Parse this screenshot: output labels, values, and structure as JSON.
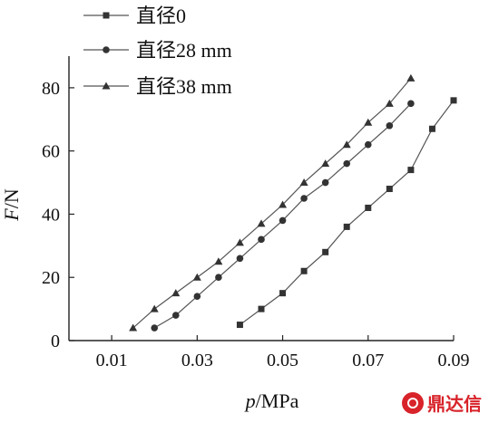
{
  "chart_data": {
    "type": "line",
    "xlabel_italic": "p",
    "xlabel_unit": "/MPa",
    "ylabel_italic": "F",
    "ylabel_unit": "/N",
    "xlim": [
      0.0,
      0.09
    ],
    "ylim": [
      0,
      90
    ],
    "xticks": [
      "0.01",
      "0.03",
      "0.05",
      "0.07",
      "0.09"
    ],
    "xtick_values": [
      0.01,
      0.03,
      0.05,
      0.07,
      0.09
    ],
    "yticks": [
      "0",
      "20",
      "40",
      "60",
      "80"
    ],
    "ytick_values": [
      0,
      20,
      40,
      60,
      80
    ],
    "grid": false,
    "legend_position": "top-left",
    "series": [
      {
        "name": "直径0",
        "marker": "square",
        "x": [
          0.04,
          0.045,
          0.05,
          0.055,
          0.06,
          0.065,
          0.07,
          0.075,
          0.08,
          0.085,
          0.09
        ],
        "y": [
          5,
          10,
          15,
          22,
          28,
          36,
          42,
          48,
          54,
          67,
          76
        ]
      },
      {
        "name": "直径28 mm",
        "marker": "circle",
        "x": [
          0.02,
          0.025,
          0.03,
          0.035,
          0.04,
          0.045,
          0.05,
          0.055,
          0.06,
          0.065,
          0.07,
          0.075,
          0.08
        ],
        "y": [
          4,
          8,
          14,
          20,
          26,
          32,
          38,
          45,
          50,
          56,
          62,
          68,
          75
        ]
      },
      {
        "name": "直径38 mm",
        "marker": "triangle",
        "x": [
          0.015,
          0.02,
          0.025,
          0.03,
          0.035,
          0.04,
          0.045,
          0.05,
          0.055,
          0.06,
          0.065,
          0.07,
          0.075,
          0.08
        ],
        "y": [
          4,
          10,
          15,
          20,
          25,
          31,
          37,
          43,
          50,
          56,
          62,
          69,
          75,
          83
        ]
      }
    ]
  },
  "watermark": {
    "text": "鼎达信"
  }
}
